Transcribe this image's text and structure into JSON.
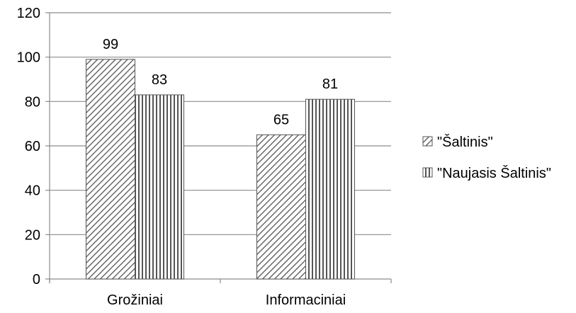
{
  "chart_data": {
    "type": "bar",
    "title": "",
    "xlabel": "",
    "ylabel": "",
    "categories": [
      "Grožiniai",
      "Informaciniai"
    ],
    "series": [
      {
        "name": "\"Šaltinis\"",
        "values": [
          99,
          65
        ],
        "pattern": "diagonal"
      },
      {
        "name": "\"Naujasis Šaltinis\"",
        "values": [
          83,
          81
        ],
        "pattern": "vertical"
      }
    ],
    "ylim": [
      0,
      120
    ],
    "yticks": [
      0,
      20,
      40,
      60,
      80,
      100,
      120
    ],
    "grid": true,
    "legend": "right",
    "colors": {
      "bar_stroke": "#555555",
      "pattern_line": "#555555",
      "grid": "#8c8c8c",
      "axis": "#8c8c8c"
    }
  }
}
